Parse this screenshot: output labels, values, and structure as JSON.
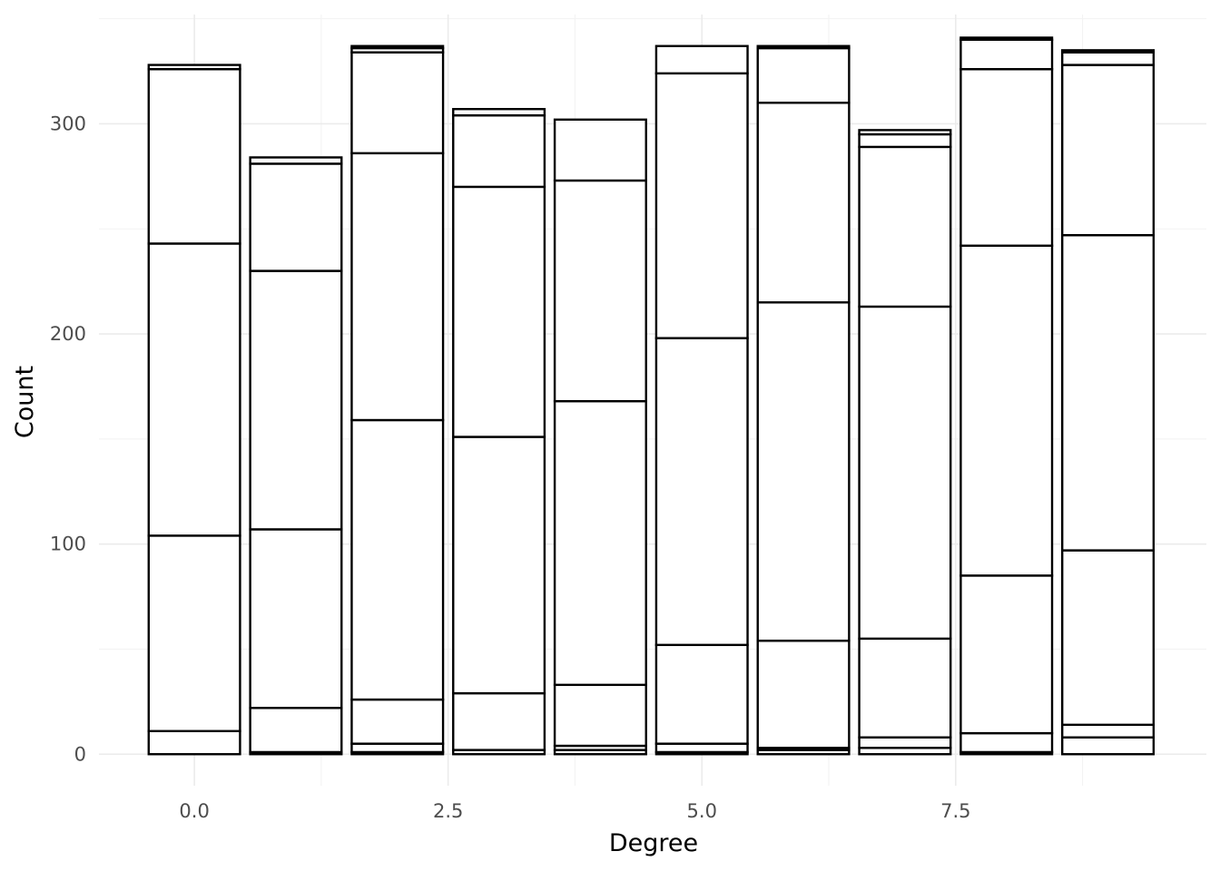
{
  "chart_data": {
    "type": "bar",
    "stacked": true,
    "title": "",
    "xlabel": "Degree",
    "ylabel": "Count",
    "x_ticks": [
      "0.0",
      "2.5",
      "5.0",
      "7.5"
    ],
    "x_tick_values": [
      0,
      2.5,
      5,
      7.5
    ],
    "y_ticks": [
      "0",
      "100",
      "200",
      "300"
    ],
    "y_tick_values": [
      0,
      100,
      200,
      300
    ],
    "xlim": [
      -0.94,
      9.97
    ],
    "ylim": [
      -15,
      352
    ],
    "grid": true,
    "legend": "none",
    "colors": {
      "bar_fill": "#ffffff",
      "bar_outline": "#000000",
      "grid_major": "#ebebeb",
      "grid_minor": "#f3f3f3"
    },
    "bars": [
      {
        "x": 0,
        "boundaries": [
          0,
          11,
          104,
          243,
          326,
          328
        ]
      },
      {
        "x": 1,
        "boundaries": [
          0,
          1,
          22,
          107,
          230,
          281,
          284
        ]
      },
      {
        "x": 2,
        "boundaries": [
          0,
          1,
          5,
          26,
          159,
          286,
          334,
          336,
          337
        ]
      },
      {
        "x": 3,
        "boundaries": [
          0,
          2,
          29,
          151,
          270,
          304,
          307
        ]
      },
      {
        "x": 4,
        "boundaries": [
          0,
          2,
          4,
          33,
          168,
          273,
          302
        ]
      },
      {
        "x": 5,
        "boundaries": [
          0,
          1,
          5,
          52,
          198,
          324,
          337
        ]
      },
      {
        "x": 6,
        "boundaries": [
          0,
          2,
          3,
          54,
          215,
          310,
          336,
          337
        ]
      },
      {
        "x": 7,
        "boundaries": [
          0,
          3,
          8,
          55,
          213,
          289,
          295,
          297
        ]
      },
      {
        "x": 8,
        "boundaries": [
          0,
          1,
          10,
          85,
          242,
          326,
          340,
          341
        ]
      },
      {
        "x": 9,
        "boundaries": [
          0,
          8,
          14,
          97,
          247,
          328,
          334,
          335
        ]
      }
    ]
  }
}
